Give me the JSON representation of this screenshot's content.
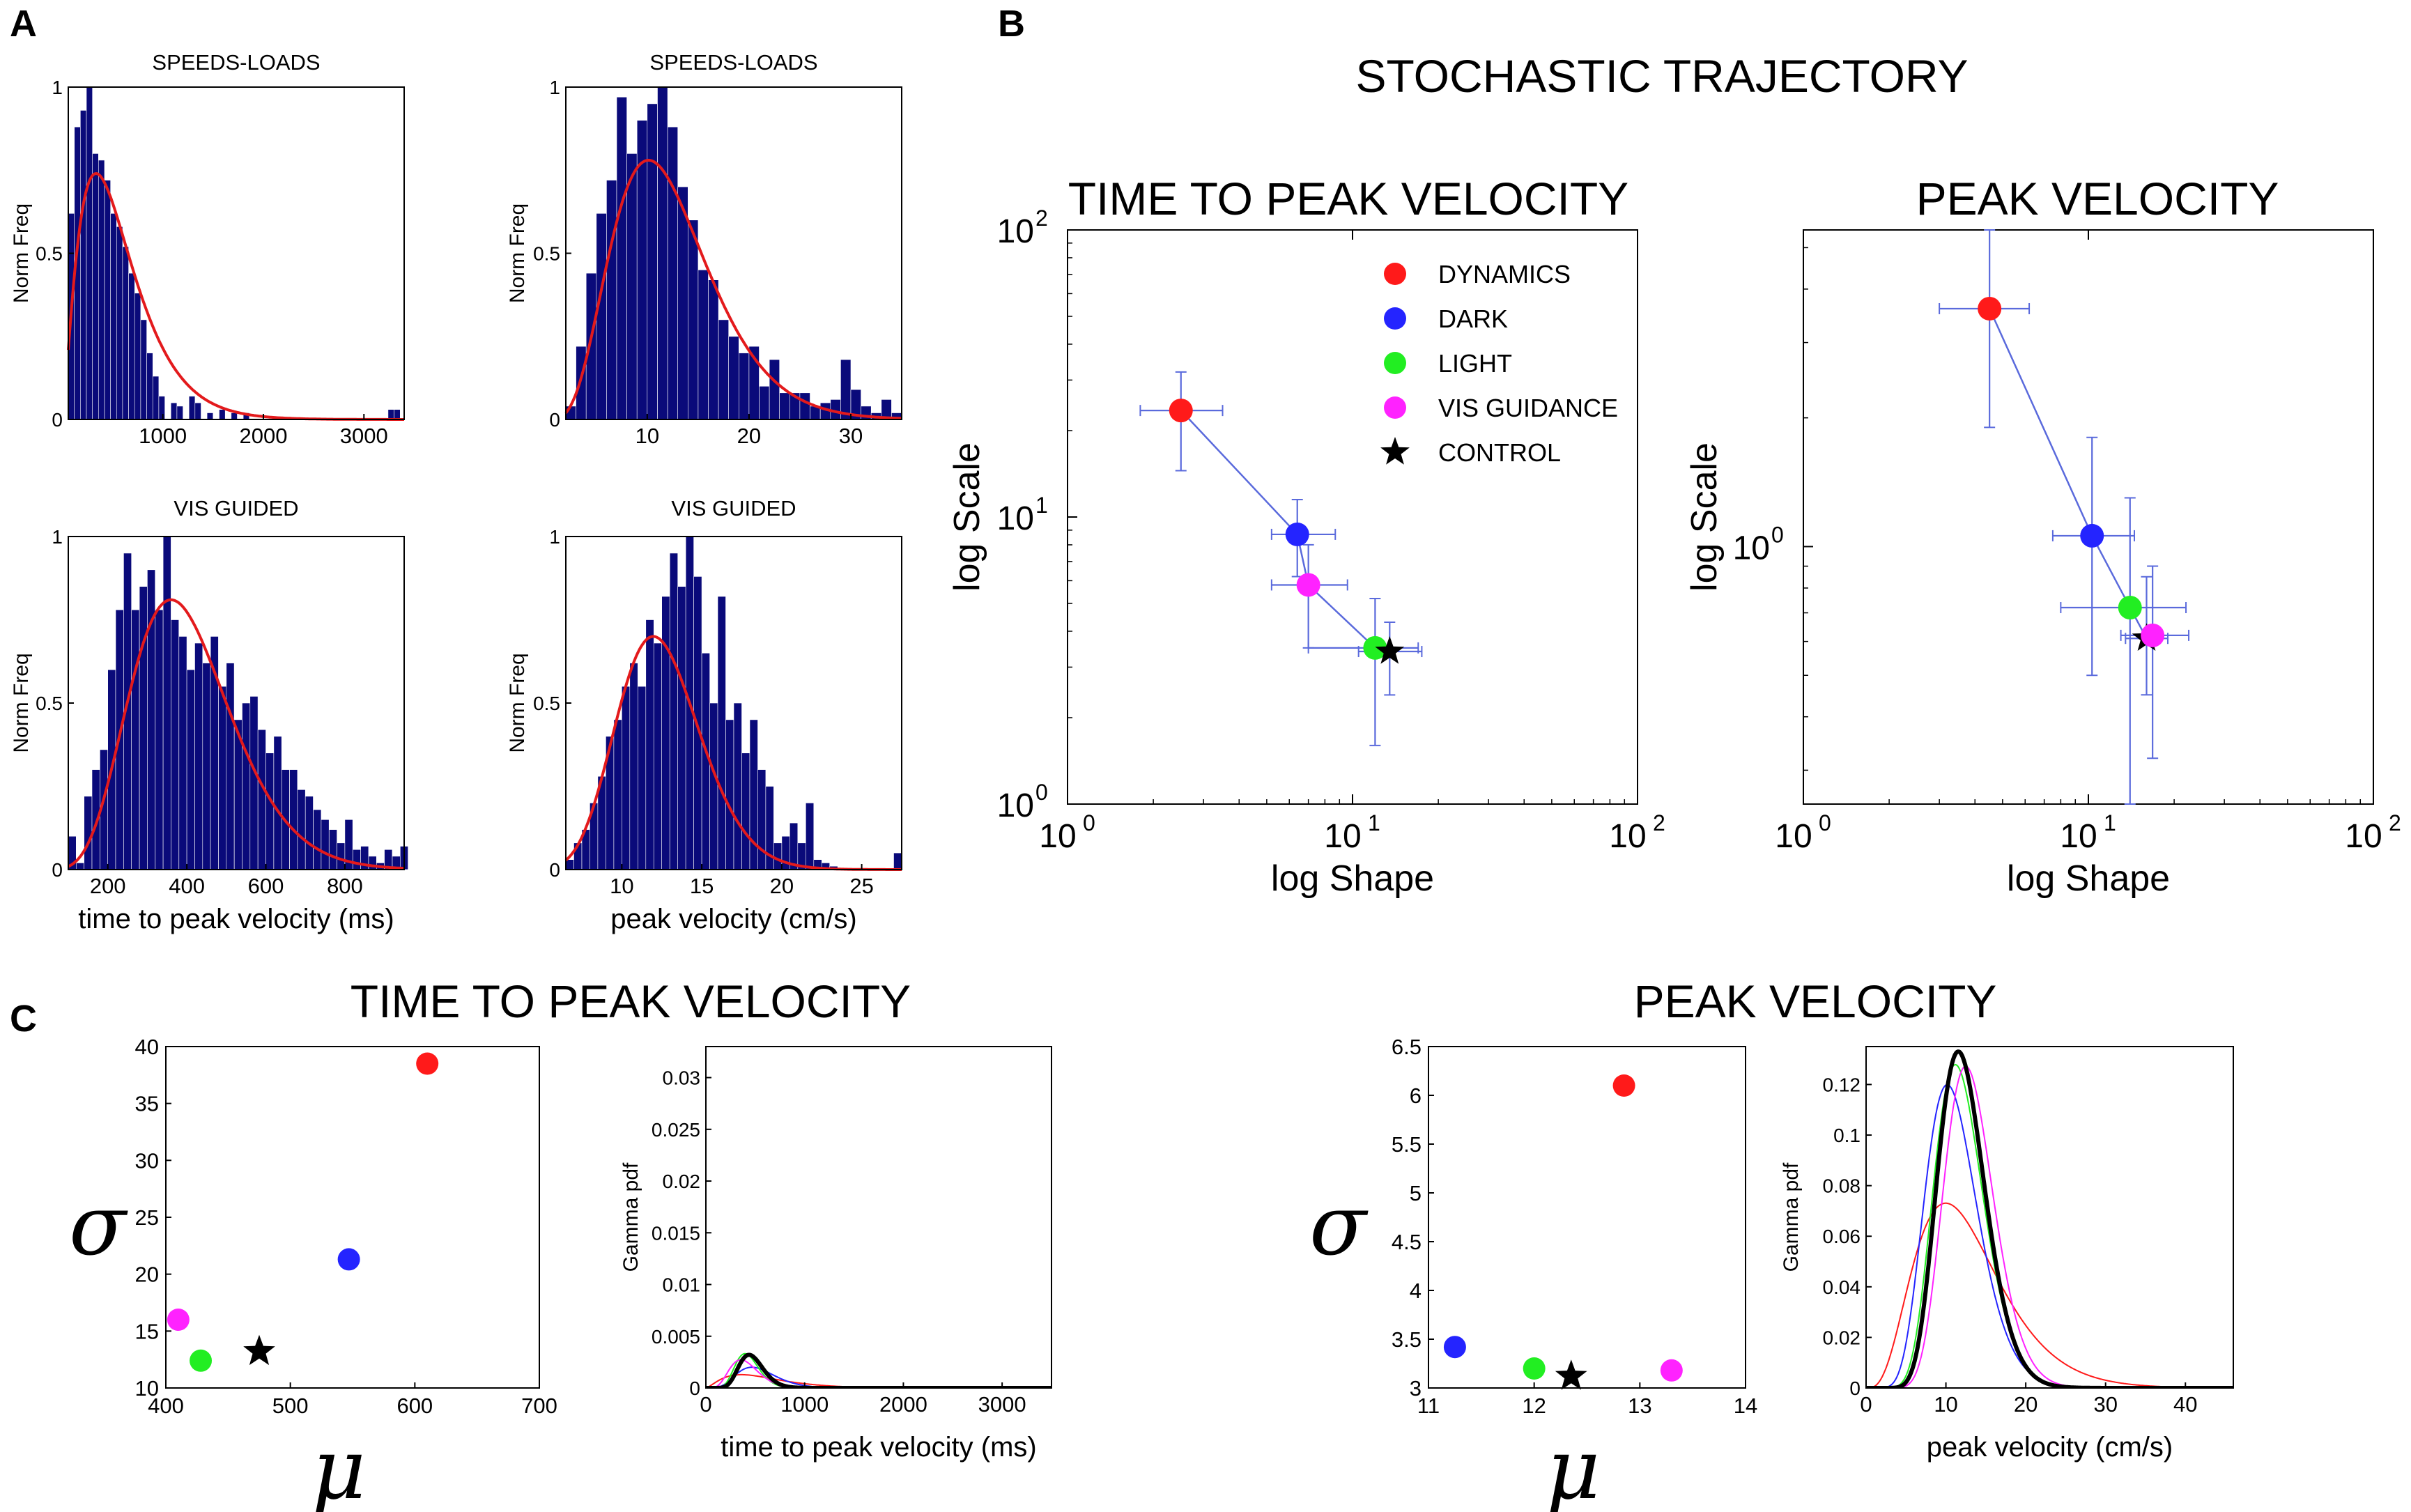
{
  "colors": {
    "hist_bar": "#0a0a7a",
    "fit": "#e31a1c",
    "dynamics": "#ff1a1a",
    "dark": "#2424ff",
    "light": "#22ee22",
    "vis_guidance": "#ff22ff",
    "control": "#000000",
    "error_bar": "#5a6adc"
  },
  "panel_letters": {
    "a": "A",
    "b": "B",
    "c": "C"
  },
  "titles": {
    "b_main": "STOCHASTIC TRAJECTORY",
    "c_left": "TIME TO PEAK VELOCITY",
    "c_right": "PEAK VELOCITY"
  },
  "chart_data": [
    {
      "id": "a1",
      "type": "bar",
      "title": "SPEEDS-LOADS",
      "ylabel": "Norm Freq",
      "xlabel": "",
      "xlim": [
        60,
        3400
      ],
      "ylim": [
        0,
        1
      ],
      "xticks": [
        1000,
        2000,
        3000
      ],
      "yticks": [
        0,
        0.5,
        1
      ],
      "ytick_labels": [
        "0",
        "0.5",
        "1"
      ],
      "bin_start": 60,
      "bin_width": 60,
      "values": [
        0.62,
        0.88,
        0.93,
        1.0,
        0.8,
        0.78,
        0.72,
        0.62,
        0.58,
        0.52,
        0.44,
        0.38,
        0.3,
        0.2,
        0.13,
        0.07,
        0,
        0.05,
        0.04,
        0,
        0.07,
        0.05,
        0,
        0.02,
        0,
        0.03,
        0,
        0.02,
        0,
        0.02,
        0,
        0,
        0,
        0,
        0,
        0,
        0,
        0,
        0,
        0,
        0,
        0,
        0,
        0,
        0,
        0,
        0,
        0,
        0,
        0,
        0,
        0,
        0,
        0.03,
        0.03,
        0
      ],
      "fit": {
        "shape": 2.4,
        "scale": 240,
        "peak": 0.74
      }
    },
    {
      "id": "a2",
      "type": "bar",
      "title": "SPEEDS-LOADS",
      "ylabel": "Norm Freq",
      "xlabel": "",
      "xlim": [
        2,
        35
      ],
      "ylim": [
        0,
        1
      ],
      "xticks": [
        10,
        20,
        30
      ],
      "yticks": [
        0,
        0.5,
        1
      ],
      "ytick_labels": [
        "0",
        "0.5",
        "1"
      ],
      "bin_start": 2,
      "bin_width": 1,
      "values": [
        0.04,
        0.22,
        0.44,
        0.62,
        0.72,
        0.97,
        0.8,
        0.9,
        0.95,
        1.0,
        0.88,
        0.7,
        0.6,
        0.45,
        0.42,
        0.3,
        0.25,
        0.2,
        0.22,
        0.1,
        0.18,
        0.08,
        0.08,
        0.08,
        0.04,
        0.05,
        0.06,
        0.18,
        0.09,
        0.04,
        0.02,
        0.06,
        0.02
      ],
      "fit": {
        "shape": 5.5,
        "scale": 2.25,
        "peak": 0.78
      }
    },
    {
      "id": "a3",
      "type": "bar",
      "title": "VIS GUIDED",
      "ylabel": "Norm Freq",
      "xlabel": "time to peak velocity (ms)",
      "xlim": [
        100,
        950
      ],
      "ylim": [
        0,
        1
      ],
      "xticks": [
        200,
        400,
        600,
        800
      ],
      "yticks": [
        0,
        0.5,
        1
      ],
      "ytick_labels": [
        "0",
        "0.5",
        "1"
      ],
      "bin_start": 100,
      "bin_width": 20,
      "values": [
        0.1,
        0.02,
        0.22,
        0.3,
        0.36,
        0.6,
        0.78,
        0.95,
        0.78,
        0.85,
        0.9,
        0.78,
        1.0,
        0.75,
        0.7,
        0.6,
        0.68,
        0.62,
        0.7,
        0.55,
        0.62,
        0.45,
        0.5,
        0.52,
        0.42,
        0.35,
        0.4,
        0.3,
        0.3,
        0.24,
        0.22,
        0.18,
        0.15,
        0.12,
        0.08,
        0.15,
        0.06,
        0.07,
        0.04,
        0.02,
        0.06,
        0.04,
        0.07
      ],
      "fit": {
        "shape": 9,
        "scale": 45,
        "peak": 0.81
      }
    },
    {
      "id": "a4",
      "type": "bar",
      "title": "VIS GUIDED",
      "ylabel": "Norm Freq",
      "xlabel": "peak velocity (cm/s)",
      "xlim": [
        6.5,
        27.5
      ],
      "ylim": [
        0,
        1
      ],
      "xticks": [
        10,
        15,
        20,
        25
      ],
      "yticks": [
        0,
        0.5,
        1
      ],
      "ytick_labels": [
        "0",
        "0.5",
        "1"
      ],
      "bin_start": 6.5,
      "bin_width": 0.5,
      "values": [
        0.03,
        0.08,
        0.12,
        0.2,
        0.28,
        0.4,
        0.45,
        0.55,
        0.62,
        0.55,
        0.75,
        0.68,
        0.82,
        0.95,
        0.85,
        1.0,
        0.88,
        0.65,
        0.5,
        0.82,
        0.45,
        0.5,
        0.35,
        0.45,
        0.3,
        0.25,
        0.08,
        0.1,
        0.14,
        0.08,
        0.2,
        0.03,
        0.02,
        0.01,
        0,
        0,
        0,
        0,
        0,
        0,
        0,
        0.05
      ],
      "fit": {
        "shape": 22,
        "scale": 0.57,
        "peak": 0.7
      }
    },
    {
      "id": "b1",
      "type": "scatter",
      "title": "TIME TO PEAK VELOCITY",
      "xlabel": "log Shape",
      "ylabel": "log Scale",
      "xscale": "log",
      "yscale": "log",
      "xlim": [
        1,
        100
      ],
      "ylim": [
        1,
        100
      ],
      "points": [
        {
          "name": "DYNAMICS",
          "x": 2.5,
          "y": 23.5,
          "xerr": [
            1.8,
            3.5
          ],
          "yerr": [
            14.5,
            32
          ]
        },
        {
          "name": "DARK",
          "x": 6.4,
          "y": 8.7,
          "xerr": [
            5.2,
            8.7
          ],
          "yerr": [
            6.2,
            11.5
          ]
        },
        {
          "name": "VIS GUIDANCE",
          "x": 7.0,
          "y": 5.8,
          "xerr": [
            5.2,
            9.6
          ],
          "yerr": [
            3.5,
            8.0
          ]
        },
        {
          "name": "LIGHT",
          "x": 12.0,
          "y": 3.5,
          "xerr": [
            7.0,
            17.0
          ],
          "yerr": [
            1.6,
            5.2
          ]
        },
        {
          "name": "CONTROL",
          "x": 13.5,
          "y": 3.4,
          "xerr": [
            10.5,
            17.5
          ],
          "yerr": [
            2.4,
            4.3
          ]
        }
      ],
      "line_order": [
        "DYNAMICS",
        "DARK",
        "VIS GUIDANCE",
        "LIGHT",
        "CONTROL"
      ]
    },
    {
      "id": "b2",
      "type": "scatter",
      "title": "PEAK VELOCITY",
      "xlabel": "log Shape",
      "ylabel": "log Scale",
      "xscale": "log",
      "yscale": "log",
      "xlim": [
        1,
        100
      ],
      "ylim": [
        0.25,
        5.5
      ],
      "yticks": [
        1
      ],
      "points": [
        {
          "name": "DYNAMICS",
          "x": 4.5,
          "y": 3.6,
          "xerr": [
            3.0,
            6.2
          ],
          "yerr": [
            1.9,
            5.5
          ]
        },
        {
          "name": "DARK",
          "x": 10.3,
          "y": 1.06,
          "xerr": [
            7.5,
            14.5
          ],
          "yerr": [
            0.5,
            1.8
          ]
        },
        {
          "name": "LIGHT",
          "x": 14.0,
          "y": 0.72,
          "xerr": [
            8.0,
            22.0
          ],
          "yerr": [
            0.25,
            1.3
          ]
        },
        {
          "name": "CONTROL",
          "x": 16.0,
          "y": 0.61,
          "xerr": [
            13.5,
            19.0
          ],
          "yerr": [
            0.45,
            0.85
          ]
        },
        {
          "name": "VIS GUIDANCE",
          "x": 16.8,
          "y": 0.62,
          "xerr": [
            13.0,
            22.5
          ],
          "yerr": [
            0.32,
            0.9
          ]
        }
      ],
      "line_order": [
        "DYNAMICS",
        "DARK",
        "LIGHT",
        "CONTROL"
      ]
    },
    {
      "id": "c1",
      "type": "scatter",
      "title": "",
      "xlabel": "μ",
      "ylabel": "σ",
      "xlim": [
        400,
        700
      ],
      "ylim": [
        10,
        40
      ],
      "xticks": [
        400,
        500,
        600,
        700
      ],
      "yticks": [
        10,
        15,
        20,
        25,
        30,
        35,
        40
      ],
      "points": [
        {
          "name": "DYNAMICS",
          "x": 610,
          "y": 38.5
        },
        {
          "name": "DARK",
          "x": 547,
          "y": 21.3
        },
        {
          "name": "VIS GUIDANCE",
          "x": 410,
          "y": 16.0
        },
        {
          "name": "LIGHT",
          "x": 428,
          "y": 12.4
        },
        {
          "name": "CONTROL",
          "x": 475,
          "y": 13.2
        }
      ]
    },
    {
      "id": "c2",
      "type": "line",
      "title": "",
      "xlabel": "time to peak velocity (ms)",
      "ylabel": "Gamma pdf",
      "xlim": [
        0,
        3500
      ],
      "ylim": [
        0,
        0.033
      ],
      "xticks": [
        0,
        1000,
        2000,
        3000
      ],
      "yticks": [
        0,
        0.005,
        0.01,
        0.015,
        0.02,
        0.025,
        0.03
      ],
      "ytick_labels": [
        "0",
        "0.005",
        "0.01",
        "0.015",
        "0.02",
        "0.025",
        "0.03"
      ],
      "series": [
        {
          "name": "DYNAMICS",
          "color_key": "dynamics",
          "shape": 2.5,
          "scale": 240,
          "width": 2
        },
        {
          "name": "DARK",
          "color_key": "dark",
          "shape": 6.6,
          "scale": 83,
          "width": 2
        },
        {
          "name": "LIGHT",
          "color_key": "light",
          "shape": 12,
          "scale": 36,
          "width": 2
        },
        {
          "name": "VIS GUIDANCE",
          "color_key": "vis_guidance",
          "shape": 7.0,
          "scale": 59,
          "width": 2
        },
        {
          "name": "CONTROL",
          "color_key": "control",
          "shape": 13.5,
          "scale": 35,
          "width": 6
        }
      ]
    },
    {
      "id": "c3",
      "type": "scatter",
      "title": "",
      "xlabel": "μ",
      "ylabel": "σ",
      "xlim": [
        11,
        14
      ],
      "ylim": [
        3,
        6.5
      ],
      "xticks": [
        11,
        12,
        13,
        14
      ],
      "yticks": [
        3,
        3.5,
        4,
        4.5,
        5,
        5.5,
        6,
        6.5
      ],
      "ytick_labels": [
        "3",
        "3.5",
        "4",
        "4.5",
        "5",
        "5.5",
        "6",
        "6.5"
      ],
      "points": [
        {
          "name": "DYNAMICS",
          "x": 12.85,
          "y": 6.1
        },
        {
          "name": "DARK",
          "x": 11.25,
          "y": 3.42
        },
        {
          "name": "LIGHT",
          "x": 12.0,
          "y": 3.2
        },
        {
          "name": "CONTROL",
          "x": 12.35,
          "y": 3.12
        },
        {
          "name": "VIS GUIDANCE",
          "x": 13.3,
          "y": 3.18
        }
      ]
    },
    {
      "id": "c4",
      "type": "line",
      "title": "",
      "xlabel": "peak velocity (cm/s)",
      "ylabel": "Gamma pdf",
      "xlim": [
        0,
        46
      ],
      "ylim": [
        0,
        0.135
      ],
      "xticks": [
        0,
        10,
        20,
        30,
        40
      ],
      "yticks": [
        0,
        0.02,
        0.04,
        0.06,
        0.08,
        0.1,
        0.12
      ],
      "ytick_labels": [
        "0",
        "0.02",
        "0.04",
        "0.06",
        "0.08",
        "0.1",
        "0.12"
      ],
      "series": [
        {
          "name": "DYNAMICS",
          "color_key": "dynamics",
          "shape": 4.5,
          "scale": 2.85,
          "width": 2
        },
        {
          "name": "DARK",
          "color_key": "dark",
          "shape": 10.5,
          "scale": 1.07,
          "width": 2
        },
        {
          "name": "LIGHT",
          "color_key": "light",
          "shape": 14,
          "scale": 0.86,
          "width": 2
        },
        {
          "name": "VIS GUIDANCE",
          "color_key": "vis_guidance",
          "shape": 17,
          "scale": 0.78,
          "width": 2
        },
        {
          "name": "CONTROL",
          "color_key": "control",
          "shape": 16,
          "scale": 0.77,
          "width": 6
        }
      ]
    }
  ],
  "legend": [
    {
      "label": "DYNAMICS",
      "color_key": "dynamics",
      "marker": "circle"
    },
    {
      "label": "DARK",
      "color_key": "dark",
      "marker": "circle"
    },
    {
      "label": "LIGHT",
      "color_key": "light",
      "marker": "circle"
    },
    {
      "label": "VIS GUIDANCE",
      "color_key": "vis_guidance",
      "marker": "circle"
    },
    {
      "label": "CONTROL",
      "color_key": "control",
      "marker": "star"
    }
  ]
}
